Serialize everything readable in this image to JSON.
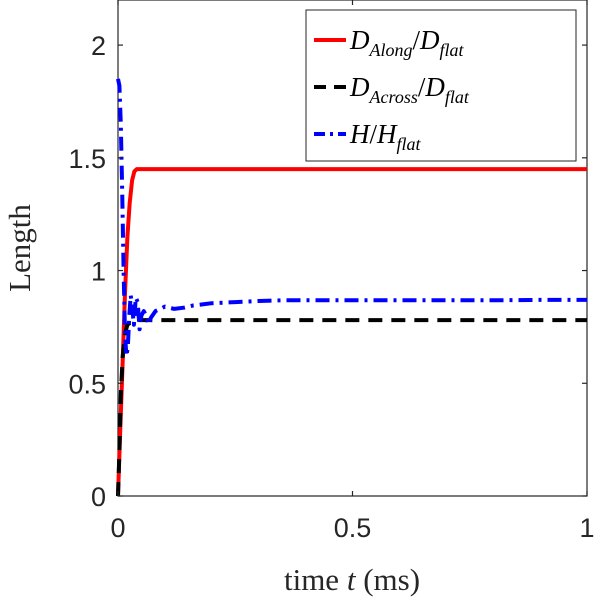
{
  "chart_data": {
    "type": "line",
    "xlabel_prefix": "time ",
    "xlabel_var": "t",
    "xlabel_suffix": " (ms)",
    "ylabel": "Length",
    "xlim": [
      0,
      1
    ],
    "ylim": [
      0,
      2.2
    ],
    "x_ticks": [
      0,
      0.5,
      1
    ],
    "y_ticks": [
      0,
      0.5,
      1,
      1.5,
      2
    ],
    "x_tick_labels": [
      "0",
      "0.5",
      "1"
    ],
    "y_tick_labels": [
      "0",
      "0.5",
      "1",
      "1.5",
      "2"
    ],
    "grid": false,
    "legend_position": "top-right",
    "series": [
      {
        "name": "D_Along/D_flat",
        "legend": {
          "a": "D",
          "a_sub": "Along",
          "slash": "/",
          "b": "D",
          "b_sub": "flat"
        },
        "color": "#ff0000",
        "dash": "solid",
        "x": [
          0,
          0.005,
          0.01,
          0.015,
          0.02,
          0.025,
          0.03,
          0.035,
          0.04,
          0.05,
          0.1,
          0.2,
          0.4,
          0.6,
          0.8,
          1.0
        ],
        "y": [
          0.0,
          0.3,
          0.6,
          0.9,
          1.15,
          1.3,
          1.4,
          1.44,
          1.45,
          1.45,
          1.45,
          1.45,
          1.45,
          1.45,
          1.45,
          1.45
        ]
      },
      {
        "name": "D_Across/D_flat",
        "legend": {
          "a": "D",
          "a_sub": "Across",
          "slash": "/",
          "b": "D",
          "b_sub": "flat"
        },
        "color": "#000000",
        "dash": "dashed",
        "x": [
          0,
          0.003,
          0.006,
          0.01,
          0.015,
          0.02,
          0.03,
          0.04,
          0.05,
          0.1,
          0.2,
          0.4,
          0.6,
          0.8,
          1.0
        ],
        "y": [
          0.0,
          0.2,
          0.45,
          0.62,
          0.72,
          0.76,
          0.775,
          0.78,
          0.78,
          0.78,
          0.78,
          0.78,
          0.78,
          0.78,
          0.78
        ]
      },
      {
        "name": "H/H_flat",
        "legend": {
          "a": "H",
          "a_sub": "",
          "slash": "/",
          "b": "H",
          "b_sub": "flat"
        },
        "color": "#0000ff",
        "dash": "dashdot",
        "x": [
          0,
          0.003,
          0.006,
          0.009,
          0.012,
          0.015,
          0.018,
          0.021,
          0.024,
          0.027,
          0.03,
          0.034,
          0.038,
          0.042,
          0.046,
          0.05,
          0.055,
          0.06,
          0.065,
          0.07,
          0.08,
          0.09,
          0.1,
          0.12,
          0.14,
          0.16,
          0.18,
          0.2,
          0.25,
          0.3,
          0.35,
          0.4,
          0.5,
          0.6,
          0.7,
          0.8,
          0.9,
          1.0
        ],
        "y": [
          1.85,
          1.82,
          1.65,
          1.35,
          1.0,
          0.72,
          0.62,
          0.66,
          0.8,
          0.89,
          0.84,
          0.76,
          0.88,
          0.86,
          0.74,
          0.8,
          0.82,
          0.8,
          0.76,
          0.79,
          0.82,
          0.83,
          0.84,
          0.83,
          0.835,
          0.845,
          0.85,
          0.855,
          0.86,
          0.865,
          0.868,
          0.868,
          0.868,
          0.868,
          0.868,
          0.868,
          0.87,
          0.87
        ]
      }
    ]
  }
}
